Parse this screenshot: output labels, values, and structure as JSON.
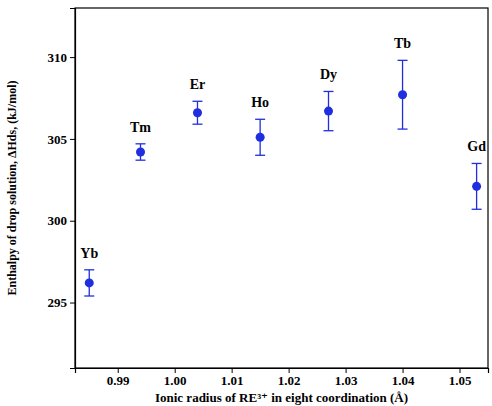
{
  "chart_data": {
    "type": "scatter",
    "x_label": "Ionic radius of RE³⁺ in eight coordination (Å)",
    "y_label": "Enthalpy of drop solution, ΔHds, (kJ/mol)",
    "x": [
      0.985,
      0.994,
      1.004,
      1.015,
      1.027,
      1.04,
      1.053
    ],
    "y": [
      296.2,
      304.2,
      306.6,
      305.1,
      306.7,
      307.7,
      302.1
    ],
    "errors": [
      0.8,
      0.5,
      0.7,
      1.1,
      1.2,
      2.1,
      1.4
    ],
    "point_labels": [
      "Yb",
      "Tm",
      "Er",
      "Ho",
      "Dy",
      "Tb",
      "Gd"
    ],
    "color": "#1f2fe0",
    "marker": "circle",
    "xlim": [
      0.9825,
      1.055
    ],
    "ylim": [
      291,
      313
    ],
    "xticks": [
      0.99,
      {
        "value": 1,
        "label": "1.00"
      },
      1.01,
      1.02,
      1.03,
      1.04,
      1.05
    ],
    "yticks": [
      295,
      300,
      305,
      310
    ],
    "grid": false
  }
}
